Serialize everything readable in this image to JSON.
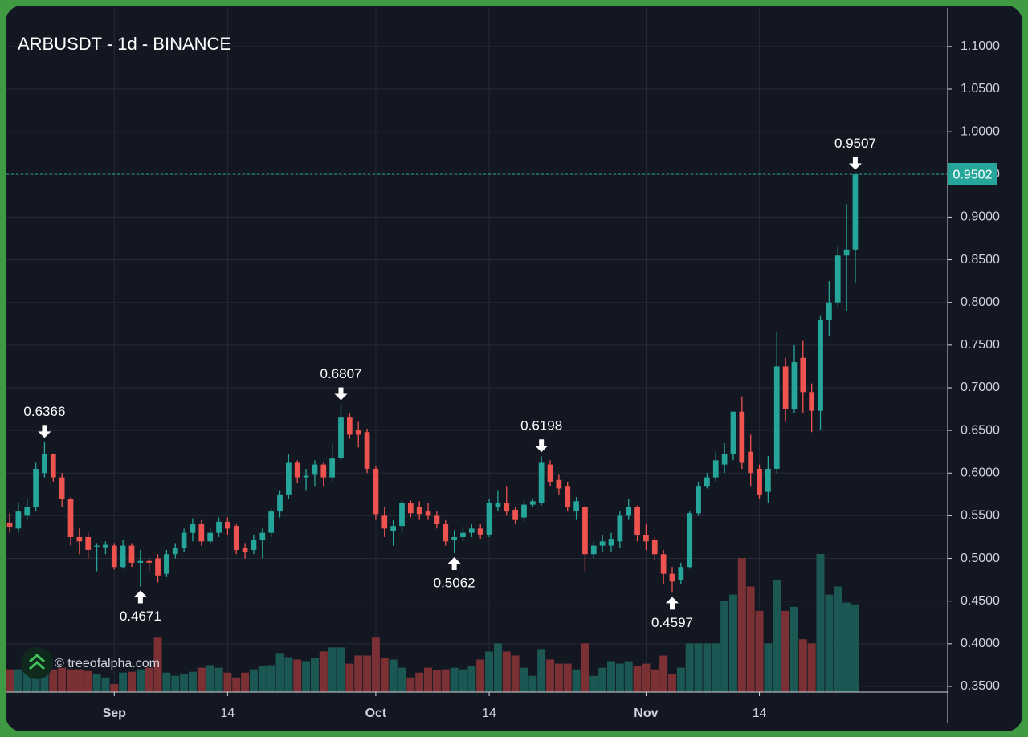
{
  "chart_data": {
    "type": "candlestick",
    "title": "ARBUSDT - 1d - BINANCE",
    "watermark": "© treeofalpha.com",
    "open": [
      0.542,
      0.535,
      0.55,
      0.56,
      0.6,
      0.622,
      0.595,
      0.57,
      0.525,
      0.525,
      0.515,
      0.513,
      0.515,
      0.49,
      0.515,
      0.495,
      0.497,
      0.5,
      0.482,
      0.505,
      0.512,
      0.53,
      0.54,
      0.52,
      0.53,
      0.543,
      0.538,
      0.512,
      0.51,
      0.522,
      0.53,
      0.555,
      0.575,
      0.612,
      0.595,
      0.598,
      0.61,
      0.595,
      0.618,
      0.665,
      0.65,
      0.648,
      0.605,
      0.55,
      0.532,
      0.538,
      0.565,
      0.56,
      0.555,
      0.55,
      0.54,
      0.522,
      0.525,
      0.53,
      0.535,
      0.528,
      0.56,
      0.565,
      0.557,
      0.548,
      0.563,
      0.565,
      0.61,
      0.592,
      0.585,
      0.555,
      0.56,
      0.505,
      0.515,
      0.515,
      0.52,
      0.55,
      0.56,
      0.527,
      0.522,
      0.505,
      0.482,
      0.475,
      0.49,
      0.553,
      0.585,
      0.595,
      0.61,
      0.622,
      0.672,
      0.625,
      0.605,
      0.578,
      0.605,
      0.725,
      0.675,
      0.735,
      0.695,
      0.673,
      0.78,
      0.8,
      0.855,
      0.862
    ],
    "high": [
      0.553,
      0.565,
      0.57,
      0.612,
      0.6366,
      0.623,
      0.6,
      0.572,
      0.535,
      0.53,
      0.518,
      0.52,
      0.518,
      0.522,
      0.518,
      0.51,
      0.5,
      0.505,
      0.51,
      0.518,
      0.535,
      0.547,
      0.545,
      0.535,
      0.548,
      0.548,
      0.54,
      0.518,
      0.528,
      0.535,
      0.558,
      0.58,
      0.622,
      0.615,
      0.605,
      0.615,
      0.612,
      0.635,
      0.6807,
      0.67,
      0.66,
      0.652,
      0.608,
      0.56,
      0.545,
      0.568,
      0.568,
      0.567,
      0.565,
      0.555,
      0.545,
      0.533,
      0.537,
      0.54,
      0.54,
      0.57,
      0.58,
      0.585,
      0.56,
      0.568,
      0.57,
      0.6198,
      0.615,
      0.598,
      0.59,
      0.572,
      0.562,
      0.52,
      0.527,
      0.53,
      0.555,
      0.57,
      0.562,
      0.54,
      0.525,
      0.51,
      0.49,
      0.495,
      0.555,
      0.59,
      0.6,
      0.625,
      0.635,
      0.672,
      0.69,
      0.645,
      0.61,
      0.62,
      0.765,
      0.735,
      0.75,
      0.755,
      0.705,
      0.785,
      0.825,
      0.865,
      0.915,
      0.9507
    ],
    "low": [
      0.53,
      0.53,
      0.545,
      0.555,
      0.595,
      0.59,
      0.56,
      0.515,
      0.505,
      0.5,
      0.485,
      0.505,
      0.487,
      0.488,
      0.49,
      0.4671,
      0.485,
      0.472,
      0.478,
      0.5,
      0.507,
      0.52,
      0.515,
      0.518,
      0.525,
      0.528,
      0.505,
      0.5,
      0.505,
      0.5,
      0.525,
      0.548,
      0.57,
      0.588,
      0.58,
      0.585,
      0.585,
      0.59,
      0.615,
      0.64,
      0.63,
      0.6,
      0.545,
      0.525,
      0.515,
      0.53,
      0.548,
      0.545,
      0.545,
      0.535,
      0.515,
      0.5062,
      0.52,
      0.525,
      0.523,
      0.525,
      0.555,
      0.55,
      0.54,
      0.543,
      0.56,
      0.562,
      0.585,
      0.575,
      0.555,
      0.545,
      0.485,
      0.5,
      0.508,
      0.508,
      0.512,
      0.545,
      0.52,
      0.51,
      0.498,
      0.47,
      0.4597,
      0.47,
      0.488,
      0.55,
      0.582,
      0.59,
      0.6,
      0.615,
      0.605,
      0.585,
      0.57,
      0.565,
      0.6,
      0.66,
      0.67,
      0.67,
      0.648,
      0.65,
      0.76,
      0.795,
      0.79,
      0.823
    ],
    "close": [
      0.537,
      0.555,
      0.56,
      0.605,
      0.622,
      0.595,
      0.57,
      0.525,
      0.52,
      0.51,
      0.515,
      0.516,
      0.49,
      0.515,
      0.495,
      0.497,
      0.495,
      0.48,
      0.505,
      0.512,
      0.53,
      0.54,
      0.52,
      0.53,
      0.543,
      0.535,
      0.51,
      0.508,
      0.522,
      0.53,
      0.555,
      0.575,
      0.612,
      0.595,
      0.597,
      0.61,
      0.595,
      0.617,
      0.665,
      0.645,
      0.645,
      0.605,
      0.552,
      0.535,
      0.538,
      0.565,
      0.553,
      0.552,
      0.55,
      0.54,
      0.52,
      0.525,
      0.53,
      0.535,
      0.528,
      0.565,
      0.565,
      0.555,
      0.545,
      0.563,
      0.567,
      0.612,
      0.59,
      0.582,
      0.56,
      0.567,
      0.505,
      0.515,
      0.52,
      0.523,
      0.55,
      0.56,
      0.527,
      0.52,
      0.505,
      0.482,
      0.473,
      0.49,
      0.553,
      0.585,
      0.595,
      0.615,
      0.622,
      0.672,
      0.612,
      0.6,
      0.575,
      0.605,
      0.725,
      0.675,
      0.73,
      0.695,
      0.673,
      0.78,
      0.8,
      0.855,
      0.862,
      0.9502
    ],
    "volume": [
      28,
      28,
      30,
      28,
      30,
      28,
      30,
      28,
      28,
      26,
      22,
      18,
      10,
      24,
      25,
      28,
      30,
      67,
      24,
      20,
      22,
      25,
      30,
      33,
      30,
      24,
      18,
      24,
      28,
      32,
      33,
      48,
      43,
      40,
      38,
      42,
      50,
      55,
      55,
      35,
      45,
      45,
      67,
      42,
      40,
      30,
      18,
      24,
      30,
      27,
      28,
      30,
      28,
      32,
      40,
      50,
      60,
      50,
      45,
      30,
      20,
      52,
      40,
      35,
      35,
      28,
      60,
      20,
      30,
      38,
      35,
      38,
      32,
      35,
      28,
      45,
      22,
      30,
      60,
      60,
      60,
      60,
      112,
      120,
      165,
      130,
      100,
      60,
      138,
      100,
      105,
      65,
      60,
      170,
      120,
      130,
      110,
      108
    ],
    "up_color": "#26a69a",
    "down_color": "#ef5350",
    "up_volume_color": "#1b5853",
    "down_volume_color": "#7b3034",
    "last_price": {
      "value": 0.9502,
      "label": "0.9502"
    },
    "annotations": [
      {
        "index": 4,
        "value": 0.6366,
        "position": "above"
      },
      {
        "index": 15,
        "value": 0.4671,
        "position": "below"
      },
      {
        "index": 38,
        "value": 0.6807,
        "position": "above"
      },
      {
        "index": 51,
        "value": 0.5062,
        "position": "below"
      },
      {
        "index": 61,
        "value": 0.6198,
        "position": "above"
      },
      {
        "index": 76,
        "value": 0.4597,
        "position": "below"
      },
      {
        "index": 97,
        "value": 0.9507,
        "position": "above"
      }
    ],
    "xlim": [
      -0.37,
      107.6
    ],
    "xticks": [
      {
        "value": 12,
        "label": "Sep"
      },
      {
        "value": 25,
        "label": "14"
      },
      {
        "value": 42,
        "label": "Oct"
      },
      {
        "value": 55,
        "label": "14"
      },
      {
        "value": 73,
        "label": "Nov"
      },
      {
        "value": 86,
        "label": "14"
      }
    ],
    "ylim": [
      0.3434,
      1.145
    ],
    "yticks": [
      {
        "value": 0.35,
        "label": "0.3500"
      },
      {
        "value": 0.4,
        "label": "0.4000"
      },
      {
        "value": 0.45,
        "label": "0.4500"
      },
      {
        "value": 0.5,
        "label": "0.5000"
      },
      {
        "value": 0.55,
        "label": "0.5500"
      },
      {
        "value": 0.6,
        "label": "0.6000"
      },
      {
        "value": 0.65,
        "label": "0.6500"
      },
      {
        "value": 0.7,
        "label": "0.7000"
      },
      {
        "value": 0.75,
        "label": "0.7500"
      },
      {
        "value": 0.8,
        "label": "0.8000"
      },
      {
        "value": 0.85,
        "label": "0.8500"
      },
      {
        "value": 0.9,
        "label": "0.9000"
      },
      {
        "value": 0.95,
        "label": "0.9500"
      },
      {
        "value": 1.0,
        "label": "1.0000"
      },
      {
        "value": 1.05,
        "label": "1.0500"
      },
      {
        "value": 1.1,
        "label": "1.1000"
      }
    ],
    "grid": true
  }
}
